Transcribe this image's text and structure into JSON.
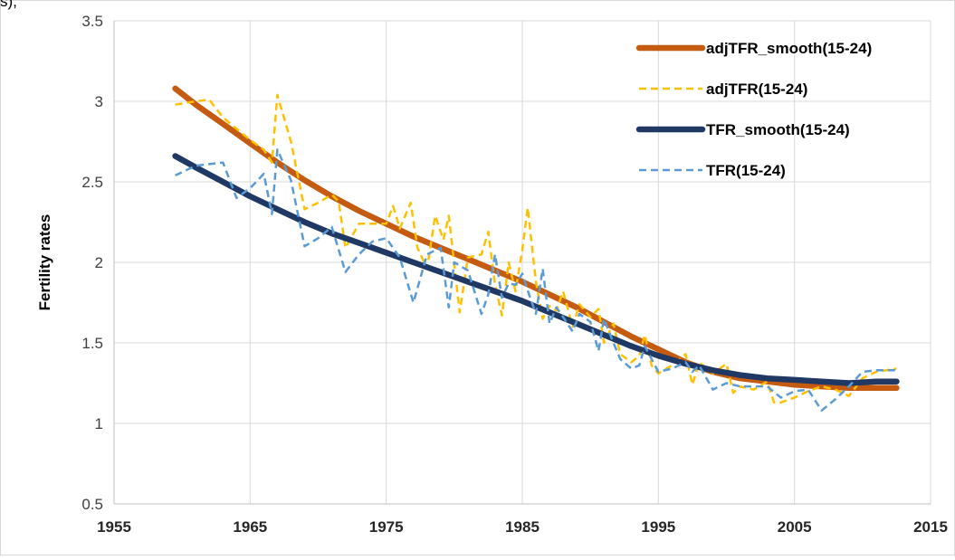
{
  "top_snippet": "s),",
  "chart_data": {
    "type": "line",
    "title": "",
    "xlabel": "",
    "ylabel": "Fertility rates",
    "xlim": [
      1955,
      2015
    ],
    "ylim": [
      0.5,
      3.5
    ],
    "x_ticks": [
      1955,
      1965,
      1975,
      1985,
      1995,
      2005,
      2015
    ],
    "x_tick_labels": [
      "1955",
      "1965",
      "1975",
      "1985",
      "1995",
      "2005",
      "2015"
    ],
    "y_ticks": [
      0.5,
      1,
      1.5,
      2,
      2.5,
      3,
      3.5
    ],
    "y_tick_labels": [
      "0.5",
      "1",
      "1.5",
      "2",
      "2.5",
      "3",
      "3.5"
    ],
    "grid": true,
    "legend_position": "top-right",
    "series": [
      {
        "name": "adjTFR_smooth(15-24)",
        "color": "#c55a11",
        "style": "solid-thick",
        "x": [
          1959.5,
          1961,
          1963,
          1965,
          1967,
          1969,
          1971,
          1973,
          1975,
          1977,
          1979,
          1981,
          1983,
          1985,
          1987,
          1989,
          1991,
          1993,
          1995,
          1997,
          1999,
          2001,
          2003,
          2005,
          2007,
          2009,
          2011,
          2012.5
        ],
        "y": [
          3.08,
          2.98,
          2.86,
          2.74,
          2.62,
          2.51,
          2.41,
          2.32,
          2.24,
          2.16,
          2.09,
          2.02,
          1.95,
          1.88,
          1.8,
          1.72,
          1.63,
          1.54,
          1.46,
          1.38,
          1.32,
          1.28,
          1.26,
          1.24,
          1.23,
          1.22,
          1.22,
          1.22
        ]
      },
      {
        "name": "adjTFR(15-24)",
        "color": "#ffc000",
        "style": "dashed",
        "x": [
          1959.5,
          1961,
          1962,
          1963,
          1964,
          1965,
          1966,
          1966.6,
          1967,
          1968,
          1969,
          1970,
          1971,
          1971.5,
          1972,
          1973,
          1974,
          1975,
          1975.5,
          1976,
          1976.8,
          1977.3,
          1978,
          1978.6,
          1979.2,
          1979.6,
          1980,
          1980.4,
          1981,
          1982,
          1982.5,
          1983,
          1983.5,
          1984,
          1984.5,
          1985,
          1985.4,
          1986,
          1986.5,
          1987,
          1987.5,
          1988,
          1988.7,
          1989.2,
          1990,
          1990.6,
          1991,
          1991.7,
          1992.2,
          1993,
          1993.6,
          1994,
          1994.5,
          1995,
          1996,
          1997,
          1997.5,
          1998,
          1999,
          2000,
          2000.5,
          2001,
          2002,
          2003,
          2003.5,
          2004,
          2005,
          2006,
          2007,
          2008,
          2009,
          2010,
          2011,
          2012.5
        ],
        "y": [
          2.98,
          3.0,
          3.01,
          2.9,
          2.83,
          2.76,
          2.7,
          2.62,
          3.04,
          2.75,
          2.33,
          2.37,
          2.42,
          2.38,
          2.09,
          2.24,
          2.24,
          2.24,
          2.35,
          2.21,
          2.37,
          2.09,
          1.96,
          2.29,
          2.14,
          2.29,
          1.99,
          1.69,
          2.03,
          2.05,
          2.19,
          1.86,
          1.67,
          2.0,
          1.82,
          2.08,
          2.34,
          1.88,
          1.65,
          1.73,
          1.7,
          1.82,
          1.6,
          1.74,
          1.66,
          1.71,
          1.5,
          1.62,
          1.43,
          1.38,
          1.42,
          1.55,
          1.36,
          1.31,
          1.36,
          1.43,
          1.24,
          1.38,
          1.31,
          1.37,
          1.19,
          1.23,
          1.21,
          1.26,
          1.13,
          1.13,
          1.16,
          1.2,
          1.23,
          1.21,
          1.17,
          1.28,
          1.32,
          1.34
        ]
      },
      {
        "name": "TFR_smooth(15-24)",
        "color": "#203864",
        "style": "solid-thick",
        "x": [
          1959.5,
          1961,
          1963,
          1965,
          1967,
          1969,
          1971,
          1973,
          1975,
          1977,
          1979,
          1981,
          1983,
          1985,
          1987,
          1989,
          1991,
          1993,
          1995,
          1997,
          1999,
          2001,
          2003,
          2005,
          2007,
          2009,
          2011,
          2012.5
        ],
        "y": [
          2.66,
          2.59,
          2.5,
          2.41,
          2.33,
          2.25,
          2.18,
          2.12,
          2.06,
          2.0,
          1.94,
          1.88,
          1.82,
          1.76,
          1.69,
          1.62,
          1.55,
          1.48,
          1.42,
          1.37,
          1.33,
          1.3,
          1.28,
          1.27,
          1.26,
          1.25,
          1.26,
          1.26
        ]
      },
      {
        "name": "TFR(15-24)",
        "color": "#5b9bd5",
        "style": "dashed",
        "x": [
          1959.5,
          1961,
          1962,
          1963,
          1964,
          1965,
          1966,
          1966.6,
          1967,
          1968,
          1969,
          1970,
          1971,
          1972,
          1973,
          1974,
          1975,
          1976,
          1977,
          1978,
          1979,
          1979.6,
          1980,
          1981,
          1982,
          1982.5,
          1983,
          1983.5,
          1984,
          1984.5,
          1985,
          1985.5,
          1986,
          1986.5,
          1987,
          1987.5,
          1988,
          1988.7,
          1989.2,
          1990,
          1990.6,
          1991,
          1991.7,
          1992.2,
          1993,
          1993.6,
          1994,
          1994.5,
          1995,
          1996,
          1997,
          1997.5,
          1998,
          1999,
          2000,
          2001,
          2002,
          2003,
          2004,
          2005,
          2006,
          2007,
          2008,
          2009,
          2010,
          2011,
          2012.5
        ],
        "y": [
          2.54,
          2.6,
          2.61,
          2.62,
          2.4,
          2.46,
          2.55,
          2.3,
          2.7,
          2.51,
          2.1,
          2.15,
          2.22,
          1.94,
          2.05,
          2.13,
          2.15,
          2.03,
          1.75,
          2.05,
          2.09,
          1.72,
          2.0,
          1.95,
          1.68,
          1.8,
          2.05,
          1.78,
          1.87,
          1.86,
          1.93,
          1.8,
          1.68,
          1.96,
          1.62,
          1.72,
          1.66,
          1.57,
          1.68,
          1.63,
          1.45,
          1.65,
          1.5,
          1.4,
          1.34,
          1.36,
          1.48,
          1.4,
          1.32,
          1.34,
          1.38,
          1.32,
          1.36,
          1.21,
          1.25,
          1.23,
          1.23,
          1.23,
          1.16,
          1.2,
          1.21,
          1.08,
          1.15,
          1.23,
          1.32,
          1.33,
          1.33
        ]
      }
    ]
  }
}
